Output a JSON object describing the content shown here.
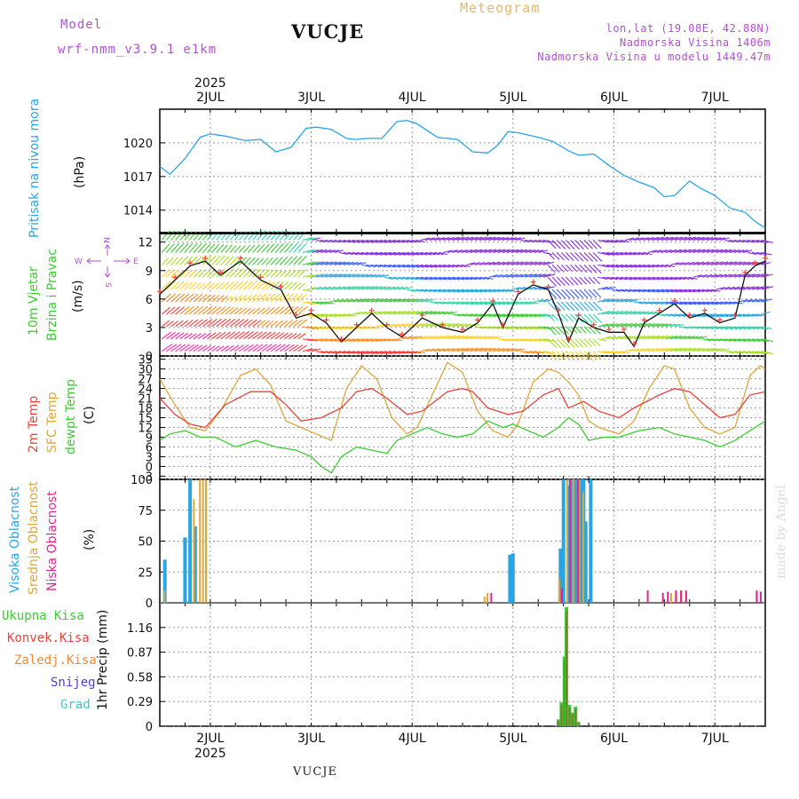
{
  "header": {
    "model_label": "Model",
    "model_name": "wrf-nmm_v3.9.1  e1km",
    "station": "VUCJE",
    "title": "Meteogram",
    "lonlat": "lon,lat (19.08E, 42.88N)",
    "altitude": "Nadmorska Visina 1406m",
    "model_altitude": "Nadmorska Visina u modelu 1449.47m"
  },
  "year_label": "2025",
  "day_labels": [
    "2JUL",
    "3JUL",
    "4JUL",
    "5JUL",
    "6JUL",
    "7JUL"
  ],
  "bottom_station": "VUCJE",
  "watermark": "made by Angel",
  "colors": {
    "pressure": "#29a5e3",
    "temp2m": "#e8453c",
    "sfc_temp": "#e0a63a",
    "dewpt": "#3ccc32",
    "high_cloud": "#29a5e3",
    "mid_cloud": "#e0a63a",
    "low_cloud": "#e0238f",
    "total_precip": "#3ccc32",
    "conv_precip": "#e8453c",
    "frz_precip": "#ef8a3a",
    "snow": "#4b3fe0",
    "hail": "#36c9c9",
    "wind_label": "#3ccc32",
    "compass": "#b44fd6"
  },
  "panels": {
    "pressure": {
      "ylabel": "Pritisak na nivou mora",
      "unit": "(hPa)"
    },
    "wind": {
      "ylabel_1": "10m Vjetar",
      "ylabel_2": "Brzina i Pravac",
      "unit": "(m/s)",
      "compass": {
        "n": "N",
        "s": "S",
        "w": "W",
        "e": "E"
      }
    },
    "temp": {
      "ylabel_2m": "2m Temp",
      "ylabel_sfc": "SFC Temp",
      "ylabel_dew": "dewpt Temp",
      "unit": "(C)"
    },
    "cloud": {
      "ylabel_high": "Visoka Oblacnost",
      "ylabel_mid": "Srednja Oblacnost",
      "ylabel_low": "Niska Oblacnost",
      "unit": "(%)"
    },
    "precip": {
      "legend": [
        "Ukupna Kisa",
        "Konvek.Kisa",
        "Zaledj.Kisa",
        "Snijeg",
        "Grad"
      ],
      "ylabel": "1hr Precip (mm)"
    }
  },
  "chart_data": [
    {
      "type": "line",
      "name": "pressure",
      "ylabel": "Pritisak na nivou mora (hPa)",
      "yticks": [
        1014,
        1017,
        1020
      ],
      "ylim": [
        1012,
        1023
      ],
      "x_start_day": 1.5,
      "x_end_day": 7.5,
      "series": [
        {
          "name": "",
          "x": [
            1.5,
            1.6,
            1.75,
            1.9,
            2.0,
            2.15,
            2.35,
            2.5,
            2.65,
            2.8,
            2.95,
            3.05,
            3.2,
            3.35,
            3.45,
            3.55,
            3.7,
            3.85,
            3.95,
            4.05,
            4.25,
            4.45,
            4.6,
            4.75,
            4.85,
            4.95,
            5.05,
            5.25,
            5.4,
            5.55,
            5.65,
            5.8,
            5.95,
            6.1,
            6.25,
            6.4,
            6.5,
            6.6,
            6.75,
            6.85,
            7.0,
            7.15,
            7.3,
            7.4,
            7.5
          ],
          "values": [
            1017.9,
            1017.2,
            1018.6,
            1020.5,
            1020.8,
            1020.6,
            1020.2,
            1020.3,
            1019.2,
            1019.6,
            1021.3,
            1021.4,
            1021.2,
            1020.4,
            1020.3,
            1020.4,
            1020.4,
            1021.9,
            1022.0,
            1021.7,
            1020.5,
            1020.3,
            1019.2,
            1019.1,
            1019.8,
            1021.0,
            1020.9,
            1020.5,
            1020.1,
            1019.3,
            1018.9,
            1019.0,
            1018.0,
            1017.1,
            1016.5,
            1016.0,
            1015.2,
            1015.3,
            1016.6,
            1016.0,
            1015.3,
            1014.2,
            1013.8,
            1013.0,
            1012.4
          ]
        }
      ]
    },
    {
      "type": "line",
      "name": "wind",
      "ylabel": "10m Vjetar Brzina i Pravac (m/s)",
      "yticks": [
        0,
        3,
        6,
        9,
        12
      ],
      "ylim": [
        0,
        13
      ],
      "series": [
        {
          "name": "",
          "x": [
            1.5,
            1.65,
            1.8,
            1.95,
            2.1,
            2.3,
            2.5,
            2.7,
            2.85,
            3.0,
            3.15,
            3.3,
            3.45,
            3.6,
            3.75,
            3.9,
            4.1,
            4.3,
            4.5,
            4.65,
            4.8,
            4.9,
            5.05,
            5.2,
            5.35,
            5.45,
            5.55,
            5.65,
            5.8,
            5.95,
            6.1,
            6.2,
            6.3,
            6.45,
            6.6,
            6.75,
            6.9,
            7.05,
            7.2,
            7.3,
            7.4,
            7.5
          ],
          "values": [
            6.5,
            8.0,
            9.5,
            10.0,
            8.5,
            10.0,
            8.0,
            7.0,
            4.0,
            4.5,
            3.5,
            1.5,
            3.0,
            4.5,
            3.0,
            2.0,
            4.0,
            3.0,
            2.5,
            3.5,
            5.5,
            3.0,
            6.5,
            7.5,
            7.0,
            4.5,
            1.5,
            4.0,
            3.0,
            2.5,
            2.5,
            1.0,
            3.5,
            4.5,
            5.5,
            4.0,
            4.5,
            3.5,
            4.0,
            8.5,
            9.5,
            10.0
          ]
        }
      ]
    },
    {
      "type": "line",
      "name": "temperature",
      "ylabel": "Temp (C)",
      "yticks": [
        -3,
        0,
        3,
        6,
        9,
        12,
        15,
        18,
        21,
        24,
        27,
        30,
        33
      ],
      "ylim": [
        -4,
        34
      ],
      "series": [
        {
          "name": "2m Temp",
          "x": [
            1.5,
            1.65,
            1.8,
            1.95,
            2.15,
            2.4,
            2.6,
            2.75,
            2.9,
            3.1,
            3.3,
            3.45,
            3.6,
            3.75,
            3.95,
            4.1,
            4.35,
            4.5,
            4.6,
            4.75,
            4.95,
            5.1,
            5.3,
            5.45,
            5.55,
            5.7,
            5.85,
            6.05,
            6.2,
            6.45,
            6.6,
            6.75,
            6.9,
            7.05,
            7.2,
            7.35,
            7.5
          ],
          "values": [
            21,
            16,
            13,
            12,
            19,
            23,
            23,
            19,
            14,
            15,
            18,
            23,
            24,
            21,
            16,
            17,
            23,
            24,
            23,
            18,
            16,
            17,
            22,
            24,
            18,
            20,
            17,
            15,
            18,
            22,
            24,
            23,
            19,
            15,
            16,
            22,
            23
          ]
        },
        {
          "name": "SFC Temp",
          "x": [
            1.5,
            1.65,
            1.8,
            1.95,
            2.1,
            2.3,
            2.45,
            2.6,
            2.75,
            2.9,
            3.05,
            3.2,
            3.35,
            3.5,
            3.65,
            3.8,
            3.95,
            4.05,
            4.2,
            4.35,
            4.5,
            4.65,
            4.8,
            4.95,
            5.05,
            5.2,
            5.35,
            5.45,
            5.55,
            5.65,
            5.75,
            5.85,
            6.05,
            6.2,
            6.35,
            6.5,
            6.6,
            6.75,
            6.9,
            7.05,
            7.2,
            7.35,
            7.45,
            7.5
          ],
          "values": [
            27,
            19,
            12,
            11,
            17,
            28,
            30,
            25,
            14,
            12,
            10,
            8,
            24,
            31,
            27,
            15,
            10,
            12,
            22,
            32,
            29,
            17,
            11,
            9,
            13,
            26,
            30,
            29,
            26,
            22,
            14,
            12,
            10,
            14,
            24,
            31,
            30,
            18,
            12,
            10,
            12,
            28,
            31,
            30
          ]
        },
        {
          "name": "dewpt Temp",
          "x": [
            1.5,
            1.6,
            1.75,
            1.9,
            2.05,
            2.25,
            2.45,
            2.65,
            2.85,
            3.0,
            3.1,
            3.2,
            3.3,
            3.45,
            3.6,
            3.75,
            3.85,
            4.0,
            4.15,
            4.3,
            4.45,
            4.6,
            4.75,
            4.9,
            5.0,
            5.15,
            5.3,
            5.45,
            5.55,
            5.65,
            5.75,
            5.9,
            6.05,
            6.25,
            6.45,
            6.6,
            6.75,
            6.9,
            7.05,
            7.2,
            7.35,
            7.5
          ],
          "values": [
            8,
            10,
            11,
            9,
            9,
            6,
            8,
            6,
            5,
            3,
            0,
            -2,
            3,
            6,
            5,
            4,
            8,
            10,
            12,
            10,
            9,
            10,
            14,
            12,
            13,
            11,
            9,
            12,
            15,
            13,
            8,
            9,
            9,
            11,
            12,
            10,
            9,
            8,
            6,
            8,
            11,
            14
          ]
        }
      ]
    },
    {
      "type": "bar",
      "name": "cloud_cover",
      "ylabel": "Oblacnost (%)",
      "yticks": [
        0,
        25,
        50,
        75,
        100
      ],
      "ylim": [
        0,
        100
      ],
      "series": [
        {
          "name": "Visoka Oblacnost",
          "x": [
            1.55,
            1.75,
            1.8,
            1.85,
            4.97,
            5.0,
            5.47,
            5.5,
            5.55,
            5.57,
            5.6,
            5.62,
            5.65,
            5.67,
            5.7,
            5.72,
            5.77
          ],
          "values": [
            35,
            53,
            100,
            62,
            39,
            40,
            44,
            100,
            95,
            100,
            100,
            100,
            100,
            100,
            100,
            66,
            100
          ]
        },
        {
          "name": "Srednja Oblacnost",
          "x": [
            1.53,
            1.82,
            1.88,
            1.91,
            1.94,
            4.7,
            4.73,
            5.44,
            5.52,
            5.58,
            5.64,
            5.68,
            6.55,
            6.6,
            6.65,
            6.7
          ],
          "values": [
            10,
            84,
            100,
            100,
            100,
            5,
            8,
            20,
            100,
            100,
            100,
            90,
            8,
            9,
            10,
            8
          ]
        },
        {
          "name": "Niska Oblacnost",
          "x": [
            4.75,
            5.45,
            5.53,
            5.61,
            6.3,
            6.45,
            6.5,
            6.58,
            6.63,
            6.68,
            7.38,
            7.42
          ],
          "values": [
            8,
            12,
            100,
            100,
            10,
            8,
            9,
            10,
            10,
            10,
            10,
            9
          ]
        }
      ]
    },
    {
      "type": "bar",
      "name": "precipitation",
      "ylabel": "1hr Precip (mm)",
      "yticks": [
        0,
        0.29,
        0.58,
        0.87,
        1.16
      ],
      "ylim": [
        0,
        1.45
      ],
      "series": [
        {
          "name": "Ukupna Kisa",
          "x": [
            5.45,
            5.48,
            5.51,
            5.53,
            5.56,
            5.59,
            5.62,
            5.65
          ],
          "values": [
            0.08,
            0.28,
            0.82,
            1.4,
            0.25,
            0.16,
            0.23,
            0.05
          ]
        },
        {
          "name": "Konvek.Kisa",
          "x": [
            5.45,
            5.48,
            5.51,
            5.53,
            5.56,
            5.59,
            5.62,
            5.65
          ],
          "values": [
            0.06,
            0.25,
            0.78,
            1.35,
            0.22,
            0.14,
            0.2,
            0.04
          ]
        }
      ]
    }
  ]
}
